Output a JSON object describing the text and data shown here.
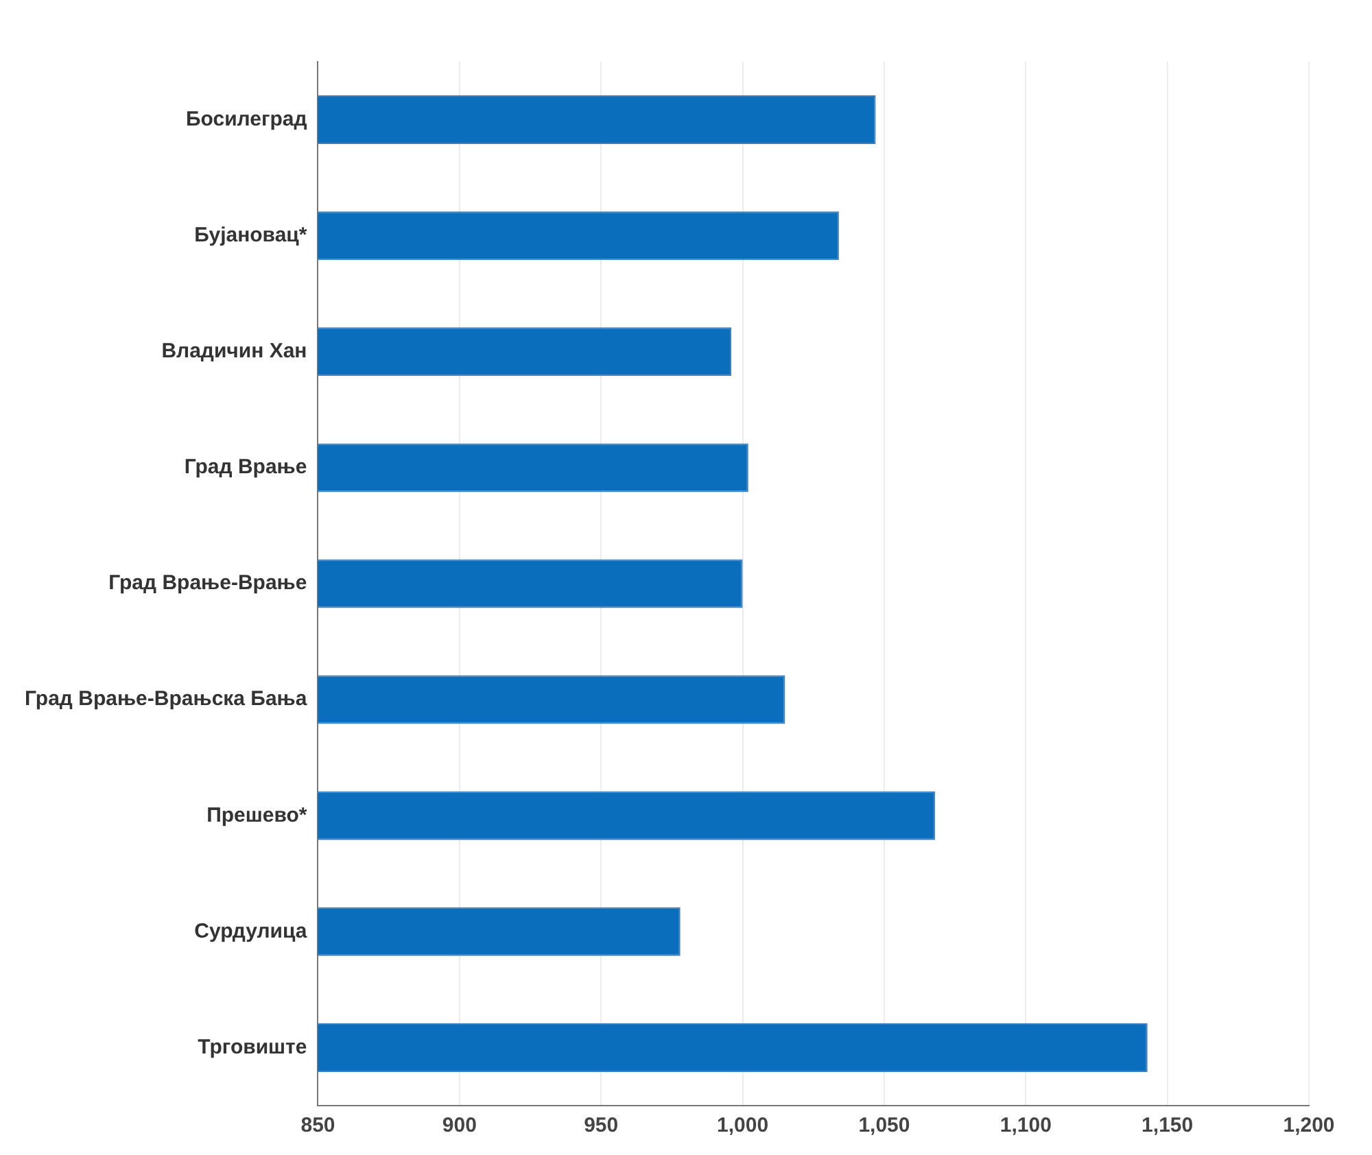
{
  "chart_data": {
    "type": "bar",
    "orientation": "horizontal",
    "categories": [
      "Босилеград",
      "Бујановац*",
      "Владичин Хан",
      "Град Врање",
      "Град Врање-Врање",
      "Град Врање-Врањска Бања",
      "Прешево*",
      "Сурдулица",
      "Трговиште"
    ],
    "values": [
      1047,
      1034,
      996,
      1002,
      1000,
      1015,
      1068,
      978,
      1143
    ],
    "color": "#0a6ebd",
    "xlim": [
      850,
      1200
    ],
    "xticks": [
      850,
      900,
      950,
      {
        "value": 1000,
        "label": "1,000"
      },
      {
        "value": 1050,
        "label": "1,050"
      },
      {
        "value": 1100,
        "label": "1,100"
      },
      {
        "value": 1150,
        "label": "1,150"
      },
      {
        "value": 1200,
        "label": "1,200"
      }
    ],
    "grid": "x"
  }
}
